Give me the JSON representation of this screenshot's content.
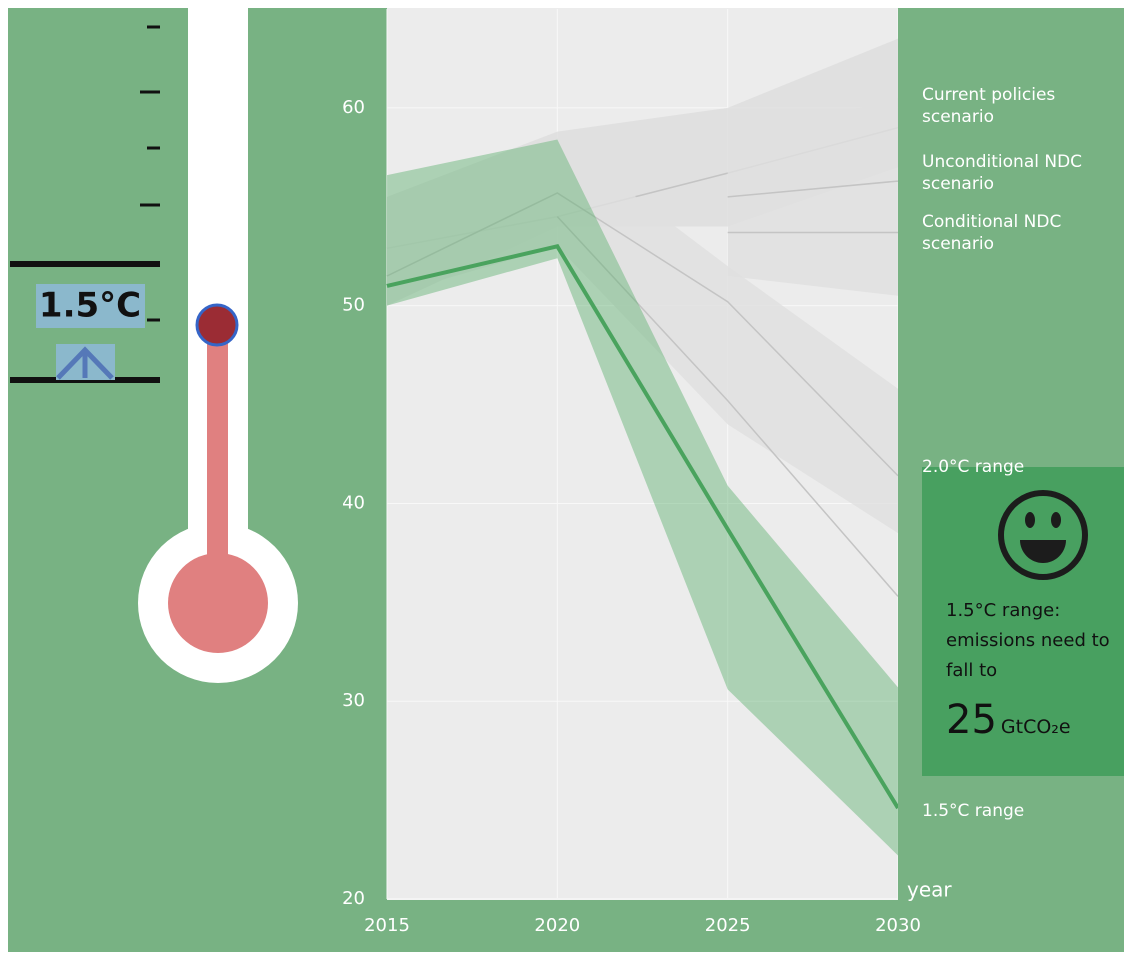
{
  "chart_data": {
    "type": "line",
    "x_label": "year",
    "xlim": [
      2015,
      2030
    ],
    "xticks": [
      2015,
      2020,
      2025,
      2030
    ],
    "ylim": [
      20,
      65
    ],
    "yticks": [
      20,
      30,
      40,
      50,
      60
    ],
    "grid": true,
    "series": [
      {
        "name": "Current policies scenario",
        "color": "#c4c4c4",
        "band_color": "#dddddd",
        "x": [
          2015,
          2020,
          2025,
          2030
        ],
        "values": [
          52.9,
          54.5,
          56.7,
          59.0
        ],
        "lower": [
          50.0,
          54.0,
          54.0,
          57.0
        ],
        "upper": [
          55.5,
          58.8,
          60.0,
          63.5
        ]
      },
      {
        "name": "Unconditional NDC scenario",
        "color": "#c4c4c4",
        "band_color": "#e0e0e0",
        "x": [
          2025,
          2030
        ],
        "values": [
          55.5,
          56.3
        ],
        "lower": [
          51.5,
          50.5
        ],
        "upper": [
          58.3,
          60.5
        ]
      },
      {
        "name": "Conditional NDC scenario",
        "color": "#c4c4c4",
        "x": [
          2025,
          2030
        ],
        "values": [
          53.7,
          53.7
        ]
      },
      {
        "name": "2.0°C range",
        "color": "#c4c4c4",
        "band_color": "#e0e0e0",
        "x": [
          2015,
          2020,
          2025,
          2030
        ],
        "values": [
          51.5,
          55.7,
          50.2,
          41.4
        ],
        "lower": [
          50.5,
          53.0,
          44.0,
          38.5
        ],
        "upper": [
          53.5,
          58.5,
          52.0,
          45.8
        ]
      },
      {
        "color": "#c4c4c4",
        "x": [
          2020,
          2025,
          2030
        ],
        "values": [
          54.5,
          45.2,
          35.3
        ]
      },
      {
        "name": "1.5°C range",
        "color": "#4aa35e",
        "band_color": "rgba(90,175,110,0.55)",
        "x": [
          2015,
          2020,
          2025,
          2030
        ],
        "values": [
          51.0,
          53.0,
          38.7,
          24.6
        ],
        "lower": [
          50.0,
          52.4,
          30.6,
          22.2
        ],
        "upper": [
          56.6,
          58.4,
          40.9,
          30.7
        ]
      }
    ]
  },
  "thermometer": {
    "label": "1.5°C"
  },
  "card": {
    "text": "1.5°C range: emissions need to fall to",
    "value": 25,
    "unit": "GtCO₂e"
  }
}
